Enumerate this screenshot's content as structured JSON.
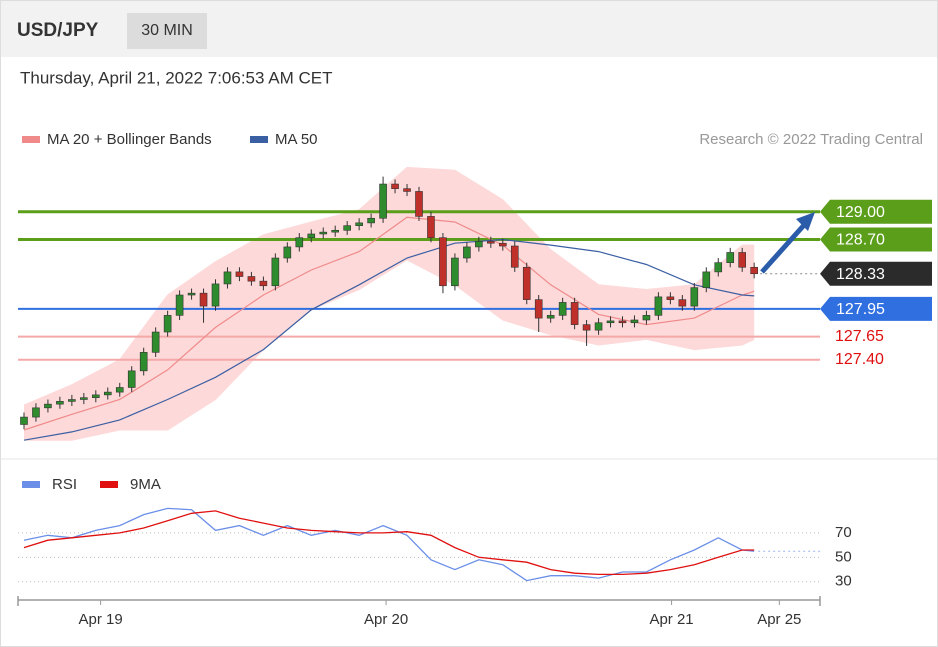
{
  "header": {
    "symbol": "USD/JPY",
    "timeframe": "30 MIN",
    "timestamp": "Thursday, April 21, 2022 7:06:53 AM CET"
  },
  "chart_data": [
    {
      "type": "candlestick",
      "credit": "Research © 2022 Trading Central",
      "up_color": "#2e8b2e",
      "down_color": "#c0302a",
      "xlim": [
        -0.5,
        66.5
      ],
      "ylim": [
        126.37,
        129.56
      ],
      "open": [
        126.7,
        126.78,
        126.88,
        126.92,
        126.95,
        126.97,
        126.99,
        127.02,
        127.05,
        127.1,
        127.28,
        127.48,
        127.7,
        127.88,
        128.1,
        128.12,
        127.98,
        128.22,
        128.35,
        128.3,
        128.25,
        128.2,
        128.5,
        128.62,
        128.72,
        128.76,
        128.78,
        128.8,
        128.85,
        128.88,
        128.93,
        129.3,
        129.25,
        129.22,
        128.95,
        128.72,
        128.2,
        128.5,
        128.62,
        128.68,
        128.66,
        128.63,
        128.4,
        128.05,
        127.85,
        127.88,
        128.02,
        127.78,
        127.72,
        127.8,
        127.82,
        127.8,
        127.83,
        127.88,
        128.08,
        128.05,
        127.98,
        128.18,
        128.35,
        128.45,
        128.56,
        128.4
      ],
      "high": [
        126.83,
        126.93,
        126.97,
        127.0,
        127.02,
        127.04,
        127.07,
        127.1,
        127.15,
        127.33,
        127.53,
        127.75,
        127.93,
        128.15,
        128.17,
        128.17,
        128.27,
        128.4,
        128.4,
        128.35,
        128.3,
        128.55,
        128.67,
        128.77,
        128.81,
        128.83,
        128.85,
        128.9,
        128.93,
        128.98,
        129.38,
        129.35,
        129.3,
        129.27,
        129.0,
        128.77,
        128.55,
        128.67,
        128.73,
        128.73,
        128.71,
        128.68,
        128.45,
        128.1,
        127.93,
        128.07,
        128.07,
        127.83,
        127.85,
        127.87,
        127.87,
        127.88,
        127.93,
        128.13,
        128.13,
        128.1,
        128.23,
        128.4,
        128.5,
        128.61,
        128.61,
        128.45
      ],
      "low": [
        126.65,
        126.73,
        126.83,
        126.87,
        126.9,
        126.92,
        126.94,
        126.97,
        127.0,
        127.05,
        127.23,
        127.43,
        127.65,
        127.83,
        128.05,
        127.8,
        127.93,
        128.17,
        128.25,
        128.2,
        128.15,
        128.15,
        128.45,
        128.57,
        128.67,
        128.71,
        128.73,
        128.75,
        128.8,
        128.83,
        128.88,
        129.2,
        129.17,
        128.9,
        128.67,
        128.12,
        128.15,
        128.45,
        128.57,
        128.61,
        128.58,
        128.35,
        128.0,
        127.7,
        127.8,
        127.83,
        127.73,
        127.55,
        127.67,
        127.75,
        127.75,
        127.75,
        127.78,
        127.83,
        128.0,
        127.93,
        127.93,
        128.13,
        128.3,
        128.4,
        128.35,
        128.28
      ],
      "close": [
        126.78,
        126.88,
        126.92,
        126.95,
        126.97,
        126.99,
        127.02,
        127.05,
        127.1,
        127.28,
        127.48,
        127.7,
        127.88,
        128.1,
        128.12,
        127.98,
        128.22,
        128.35,
        128.3,
        128.25,
        128.2,
        128.5,
        128.62,
        128.72,
        128.76,
        128.78,
        128.8,
        128.85,
        128.88,
        128.93,
        129.3,
        129.25,
        129.22,
        128.95,
        128.72,
        128.2,
        128.5,
        128.62,
        128.68,
        128.66,
        128.63,
        128.4,
        128.05,
        127.85,
        127.88,
        128.02,
        127.78,
        127.72,
        127.8,
        127.82,
        127.8,
        127.83,
        127.88,
        128.08,
        128.05,
        127.98,
        128.18,
        128.35,
        128.45,
        128.56,
        128.4,
        128.33
      ],
      "overlays": [
        {
          "name": "MA 20 + Bollinger Bands",
          "color": "#f08a8a",
          "band_color": "#fdd9d9",
          "x": [
            0,
            4,
            8,
            12,
            16,
            20,
            24,
            28,
            32,
            36,
            40,
            44,
            48,
            52,
            56,
            60,
            61
          ],
          "values": [
            126.64,
            126.81,
            126.97,
            127.29,
            127.75,
            128.1,
            128.37,
            128.57,
            128.94,
            128.89,
            128.64,
            128.21,
            127.89,
            127.78,
            127.85,
            128.1,
            128.14
          ],
          "upper": [
            126.91,
            127.13,
            127.4,
            128.1,
            128.46,
            128.75,
            128.89,
            129.02,
            129.48,
            129.45,
            129.13,
            128.59,
            128.21,
            128.16,
            128.21,
            128.64,
            128.64
          ],
          "lower": [
            126.53,
            126.53,
            126.64,
            126.64,
            126.97,
            127.51,
            127.94,
            128.16,
            128.48,
            128.21,
            127.83,
            127.67,
            127.56,
            127.62,
            127.51,
            127.56,
            127.62
          ]
        },
        {
          "name": "MA 50",
          "color": "#3b5fa3",
          "x": [
            0,
            4,
            8,
            12,
            16,
            20,
            24,
            28,
            32,
            36,
            40,
            44,
            48,
            52,
            56,
            60,
            61
          ],
          "values": [
            126.53,
            126.62,
            126.75,
            126.97,
            127.21,
            127.51,
            127.94,
            128.21,
            128.5,
            128.66,
            128.7,
            128.64,
            128.57,
            128.43,
            128.21,
            128.1,
            128.09
          ]
        }
      ],
      "levels": [
        {
          "value": 129,
          "label": "129.00"
        },
        {
          "value": 128.7,
          "label": "128.70"
        },
        128.33,
        127.95,
        127.65,
        {
          "value": 127.4,
          "label": "127.40"
        }
      ],
      "level_colors": [
        "#5a9e1a",
        "#5a9e1a",
        "#2b2b2b",
        "#2f6fe0",
        "#f4a8a8",
        "#f4a8a8"
      ],
      "level_styles": [
        "box",
        "box",
        "current",
        "box",
        "text",
        "text"
      ]
    },
    {
      "type": "line",
      "xlim": [
        -0.5,
        66.5
      ],
      "ylim": [
        20,
        92
      ],
      "yticks": [
        30,
        50,
        70
      ],
      "xticks": [
        {
          "value": 6.4,
          "label": "Apr 19"
        },
        {
          "value": 30.25,
          "label": "Apr 20"
        },
        {
          "value": 54.1,
          "label": "Apr 21"
        },
        {
          "value": 63.1,
          "label": "Apr 25"
        }
      ],
      "series": [
        {
          "name": "RSI",
          "color": "#6b8fe8",
          "x": [
            0,
            2,
            4,
            6,
            8,
            10,
            12,
            14,
            16,
            18,
            20,
            22,
            24,
            26,
            28,
            30,
            32,
            34,
            36,
            38,
            40,
            42,
            44,
            46,
            48,
            50,
            52,
            54,
            56,
            58,
            60,
            61
          ],
          "values": [
            64,
            68,
            66,
            72,
            76,
            85,
            90,
            89,
            72,
            76,
            68,
            76,
            68,
            72,
            68,
            76,
            68,
            48,
            40,
            48,
            44,
            31,
            35,
            35,
            33,
            38,
            38,
            48,
            56,
            66,
            56,
            55
          ]
        },
        {
          "name": "9MA",
          "color": "#e01010",
          "x": [
            0,
            2,
            4,
            6,
            8,
            10,
            12,
            14,
            16,
            18,
            20,
            22,
            24,
            26,
            28,
            30,
            32,
            34,
            36,
            38,
            40,
            42,
            44,
            46,
            48,
            50,
            52,
            54,
            56,
            58,
            60,
            61
          ],
          "values": [
            58,
            64,
            66,
            68,
            70,
            74,
            80,
            86,
            88,
            82,
            78,
            74,
            72,
            71,
            70,
            70,
            71,
            68,
            58,
            50,
            48,
            46,
            40,
            37,
            36,
            36,
            37,
            40,
            44,
            50,
            56,
            56
          ]
        }
      ]
    }
  ]
}
